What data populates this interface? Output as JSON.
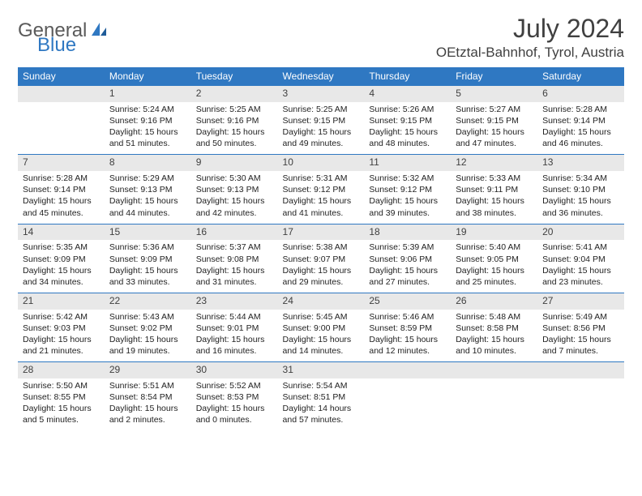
{
  "brand": {
    "part1": "General",
    "part2": "Blue"
  },
  "title": "July 2024",
  "location": "OEtztal-Bahnhof, Tyrol, Austria",
  "colors": {
    "header_bg": "#2f78c2",
    "header_fg": "#ffffff",
    "daynum_bg": "#e8e8e8",
    "rule": "#2f78c2",
    "text": "#222222",
    "title_text": "#404040",
    "logo_gray": "#5a5a5a",
    "logo_blue": "#2f78c2"
  },
  "weekdays": [
    "Sunday",
    "Monday",
    "Tuesday",
    "Wednesday",
    "Thursday",
    "Friday",
    "Saturday"
  ],
  "weeks": [
    [
      null,
      {
        "n": "1",
        "sunrise": "5:24 AM",
        "sunset": "9:16 PM",
        "day_h": 15,
        "day_m": 51
      },
      {
        "n": "2",
        "sunrise": "5:25 AM",
        "sunset": "9:16 PM",
        "day_h": 15,
        "day_m": 50
      },
      {
        "n": "3",
        "sunrise": "5:25 AM",
        "sunset": "9:15 PM",
        "day_h": 15,
        "day_m": 49
      },
      {
        "n": "4",
        "sunrise": "5:26 AM",
        "sunset": "9:15 PM",
        "day_h": 15,
        "day_m": 48
      },
      {
        "n": "5",
        "sunrise": "5:27 AM",
        "sunset": "9:15 PM",
        "day_h": 15,
        "day_m": 47
      },
      {
        "n": "6",
        "sunrise": "5:28 AM",
        "sunset": "9:14 PM",
        "day_h": 15,
        "day_m": 46
      }
    ],
    [
      {
        "n": "7",
        "sunrise": "5:28 AM",
        "sunset": "9:14 PM",
        "day_h": 15,
        "day_m": 45
      },
      {
        "n": "8",
        "sunrise": "5:29 AM",
        "sunset": "9:13 PM",
        "day_h": 15,
        "day_m": 44
      },
      {
        "n": "9",
        "sunrise": "5:30 AM",
        "sunset": "9:13 PM",
        "day_h": 15,
        "day_m": 42
      },
      {
        "n": "10",
        "sunrise": "5:31 AM",
        "sunset": "9:12 PM",
        "day_h": 15,
        "day_m": 41
      },
      {
        "n": "11",
        "sunrise": "5:32 AM",
        "sunset": "9:12 PM",
        "day_h": 15,
        "day_m": 39
      },
      {
        "n": "12",
        "sunrise": "5:33 AM",
        "sunset": "9:11 PM",
        "day_h": 15,
        "day_m": 38
      },
      {
        "n": "13",
        "sunrise": "5:34 AM",
        "sunset": "9:10 PM",
        "day_h": 15,
        "day_m": 36
      }
    ],
    [
      {
        "n": "14",
        "sunrise": "5:35 AM",
        "sunset": "9:09 PM",
        "day_h": 15,
        "day_m": 34
      },
      {
        "n": "15",
        "sunrise": "5:36 AM",
        "sunset": "9:09 PM",
        "day_h": 15,
        "day_m": 33
      },
      {
        "n": "16",
        "sunrise": "5:37 AM",
        "sunset": "9:08 PM",
        "day_h": 15,
        "day_m": 31
      },
      {
        "n": "17",
        "sunrise": "5:38 AM",
        "sunset": "9:07 PM",
        "day_h": 15,
        "day_m": 29
      },
      {
        "n": "18",
        "sunrise": "5:39 AM",
        "sunset": "9:06 PM",
        "day_h": 15,
        "day_m": 27
      },
      {
        "n": "19",
        "sunrise": "5:40 AM",
        "sunset": "9:05 PM",
        "day_h": 15,
        "day_m": 25
      },
      {
        "n": "20",
        "sunrise": "5:41 AM",
        "sunset": "9:04 PM",
        "day_h": 15,
        "day_m": 23
      }
    ],
    [
      {
        "n": "21",
        "sunrise": "5:42 AM",
        "sunset": "9:03 PM",
        "day_h": 15,
        "day_m": 21
      },
      {
        "n": "22",
        "sunrise": "5:43 AM",
        "sunset": "9:02 PM",
        "day_h": 15,
        "day_m": 19
      },
      {
        "n": "23",
        "sunrise": "5:44 AM",
        "sunset": "9:01 PM",
        "day_h": 15,
        "day_m": 16
      },
      {
        "n": "24",
        "sunrise": "5:45 AM",
        "sunset": "9:00 PM",
        "day_h": 15,
        "day_m": 14
      },
      {
        "n": "25",
        "sunrise": "5:46 AM",
        "sunset": "8:59 PM",
        "day_h": 15,
        "day_m": 12
      },
      {
        "n": "26",
        "sunrise": "5:48 AM",
        "sunset": "8:58 PM",
        "day_h": 15,
        "day_m": 10
      },
      {
        "n": "27",
        "sunrise": "5:49 AM",
        "sunset": "8:56 PM",
        "day_h": 15,
        "day_m": 7
      }
    ],
    [
      {
        "n": "28",
        "sunrise": "5:50 AM",
        "sunset": "8:55 PM",
        "day_h": 15,
        "day_m": 5
      },
      {
        "n": "29",
        "sunrise": "5:51 AM",
        "sunset": "8:54 PM",
        "day_h": 15,
        "day_m": 2
      },
      {
        "n": "30",
        "sunrise": "5:52 AM",
        "sunset": "8:53 PM",
        "day_h": 15,
        "day_m": 0
      },
      {
        "n": "31",
        "sunrise": "5:54 AM",
        "sunset": "8:51 PM",
        "day_h": 14,
        "day_m": 57
      },
      null,
      null,
      null
    ]
  ],
  "labels": {
    "sunrise": "Sunrise:",
    "sunset": "Sunset:",
    "daylight_prefix": "Daylight:",
    "hours_word": "hours",
    "and_word": "and",
    "minutes_word": "minutes."
  }
}
